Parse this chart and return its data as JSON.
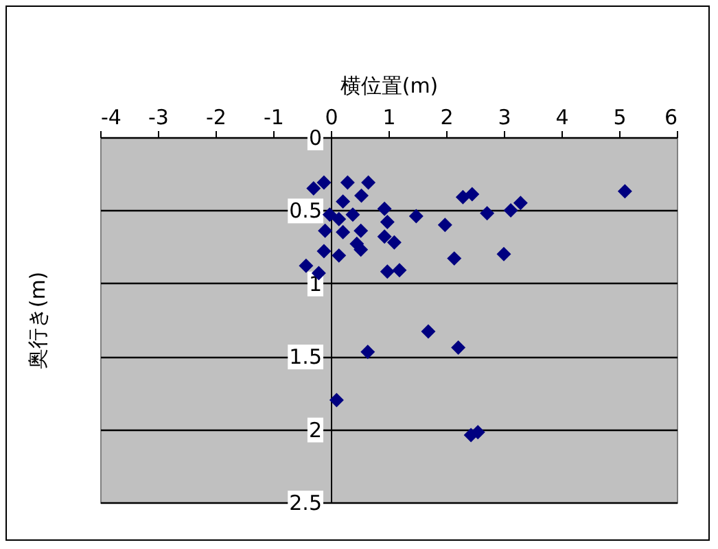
{
  "chart_data": {
    "type": "scatter",
    "xlabel": "横位置(m)",
    "ylabel": "奥行き(m)",
    "xlim": [
      -4,
      6
    ],
    "xticks": [
      -4,
      -3,
      -2,
      -1,
      0,
      1,
      2,
      3,
      4,
      5,
      6
    ],
    "ylim": [
      2.5,
      0
    ],
    "yticks": [
      {
        "value": 0,
        "label": "0"
      },
      0.5,
      {
        "value": 1,
        "label": "1"
      },
      1.5,
      {
        "value": 2,
        "label": "2"
      },
      2.5
    ],
    "grid": "y",
    "marker": "diamond",
    "legend": false,
    "series": [
      {
        "color": "#000080",
        "x": [
          -0.12,
          -0.3,
          0.29,
          0.65,
          0.53,
          0.21,
          -0.02,
          0.38,
          0.93,
          0.98,
          1.48,
          1.98,
          2.29,
          2.45,
          2.71,
          -0.1,
          0.52,
          0.93,
          1.1,
          0.45,
          0.52,
          -0.12,
          0.14,
          2.14,
          -0.43,
          -0.21,
          0.98,
          1.19,
          0.14,
          0.21,
          3.12,
          3.29,
          5.1,
          3.0,
          0.64,
          1.69,
          2.21,
          0.1,
          2.43,
          2.55
        ],
        "values": [
          0.31,
          0.35,
          0.31,
          0.31,
          0.4,
          0.44,
          0.53,
          0.53,
          0.49,
          0.58,
          0.54,
          0.6,
          0.41,
          0.39,
          0.52,
          0.64,
          0.64,
          0.68,
          0.72,
          0.73,
          0.77,
          0.78,
          0.81,
          0.83,
          0.88,
          0.93,
          0.92,
          0.91,
          0.56,
          0.65,
          0.5,
          0.45,
          0.37,
          0.8,
          1.47,
          1.33,
          1.44,
          1.8,
          2.04,
          2.02
        ]
      }
    ]
  }
}
